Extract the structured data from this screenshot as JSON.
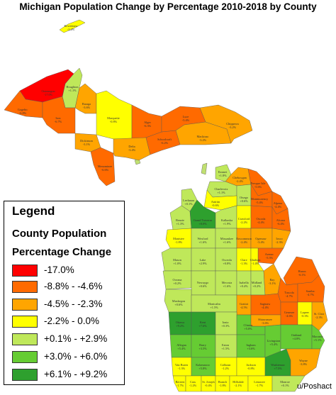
{
  "title": "Michigan Population Change by Percentage 2010-2018 by County",
  "credit": "u/Poshact",
  "legend": {
    "heading": "Legend",
    "subtitle_line1": "County Population",
    "subtitle_line2": "Percentage Change",
    "items": [
      {
        "label": "-17.0%",
        "color": "#ff0000"
      },
      {
        "label": "-8.8% - -4.6%",
        "color": "#ff6a00"
      },
      {
        "label": "-4.5% - -2.3%",
        "color": "#ffa500"
      },
      {
        "label": "-2.2% - 0.0%",
        "color": "#ffff00"
      },
      {
        "label": "+0.1% - +2.9%",
        "color": "#bfe85a"
      },
      {
        "label": "+3.0% - +6.0%",
        "color": "#66cc33"
      },
      {
        "label": "+6.1% - +9.2%",
        "color": "#2ea02e"
      }
    ]
  },
  "counties": [
    {
      "name": "Keweenaw",
      "change": "-2.2%",
      "cls": 3
    },
    {
      "name": "Houghton",
      "change": "+1.1%",
      "cls": 4
    },
    {
      "name": "Ontonagon",
      "change": "-17.0%",
      "cls": 0
    },
    {
      "name": "Gogebic",
      "change": "-6.8%",
      "cls": 1
    },
    {
      "name": "Iron",
      "change": "-6.7%",
      "cls": 1
    },
    {
      "name": "Baraga",
      "change": "-3.6%",
      "cls": 2
    },
    {
      "name": "Marquette",
      "change": "-0.8%",
      "cls": 3
    },
    {
      "name": "Dickinson",
      "change": "-3.1%",
      "cls": 2
    },
    {
      "name": "Menominee",
      "change": "-6.6%",
      "cls": 1
    },
    {
      "name": "Alger",
      "change": "-6.3%",
      "cls": 1
    },
    {
      "name": "Delta",
      "change": "-3.4%",
      "cls": 2
    },
    {
      "name": "Schoolcraft",
      "change": "-6.2%",
      "cls": 1
    },
    {
      "name": "Luce",
      "change": "-5.4%",
      "cls": 1
    },
    {
      "name": "Mackinac",
      "change": "-3.2%",
      "cls": 2
    },
    {
      "name": "Chippewa",
      "change": "-3.2%",
      "cls": 2
    },
    {
      "name": "Emmet",
      "change": "+1.8%",
      "cls": 4
    },
    {
      "name": "Cheboygan",
      "change": "-2.4%",
      "cls": 2
    },
    {
      "name": "Presque Isle",
      "change": "-5.6%",
      "cls": 1
    },
    {
      "name": "Charlevoix",
      "change": "+1.1%",
      "cls": 4
    },
    {
      "name": "Otsego",
      "change": "+0.6%",
      "cls": 4
    },
    {
      "name": "Montmorency",
      "change": "-5.4%",
      "cls": 1
    },
    {
      "name": "Alpena",
      "change": "-4.4%",
      "cls": 1
    },
    {
      "name": "Antrim",
      "change": "-0.6%",
      "cls": 3
    },
    {
      "name": "Leelanau",
      "change": "+0.1%",
      "cls": 4
    },
    {
      "name": "Benzie",
      "change": "+1.3%",
      "cls": 4
    },
    {
      "name": "Grand Traverse",
      "change": "+8.0%",
      "cls": 6
    },
    {
      "name": "Kalkaska",
      "change": "+1.9%",
      "cls": 4
    },
    {
      "name": "Crawford",
      "change": "-2.2%",
      "cls": 3
    },
    {
      "name": "Oscoda",
      "change": "-4.4%",
      "cls": 1
    },
    {
      "name": "Alcona",
      "change": "-6.4%",
      "cls": 1
    },
    {
      "name": "Manistee",
      "change": "-1.8%",
      "cls": 3
    },
    {
      "name": "Wexford",
      "change": "+1.6%",
      "cls": 4
    },
    {
      "name": "Missaukee",
      "change": "+1.6%",
      "cls": 4
    },
    {
      "name": "Roscommon",
      "change": "-2.4%",
      "cls": 2
    },
    {
      "name": "Ogemaw",
      "change": "-3.4%",
      "cls": 2
    },
    {
      "name": "Iosco",
      "change": "-2.3%",
      "cls": 2
    },
    {
      "name": "Arenac",
      "change": "-5.3%",
      "cls": 1
    },
    {
      "name": "Mason",
      "change": "+1.0%",
      "cls": 4
    },
    {
      "name": "Lake",
      "change": "+2.9%",
      "cls": 4
    },
    {
      "name": "Osceola",
      "change": "+0.8%",
      "cls": 4
    },
    {
      "name": "Clare",
      "change": "-1.3%",
      "cls": 3
    },
    {
      "name": "Gladwin",
      "change": "-1.4%",
      "cls": 3
    },
    {
      "name": "Oceana",
      "change": "+0.2%",
      "cls": 4
    },
    {
      "name": "Newaygo",
      "change": "+0.6%",
      "cls": 4
    },
    {
      "name": "Mecosta",
      "change": "+1.6%",
      "cls": 4
    },
    {
      "name": "Isabella",
      "change": "+0.4%",
      "cls": 4
    },
    {
      "name": "Midland",
      "change": "+0.2%",
      "cls": 4
    },
    {
      "name": "Bay",
      "change": "-3.1%",
      "cls": 2
    },
    {
      "name": "Huron",
      "change": "-6.1%",
      "cls": 1
    },
    {
      "name": "Tuscola",
      "change": "-4.7%",
      "cls": 1
    },
    {
      "name": "Sanilac",
      "change": "-4.7%",
      "cls": 1
    },
    {
      "name": "Muskegon",
      "change": "+0.6%",
      "cls": 4
    },
    {
      "name": "Montcalm",
      "change": "+1.5%",
      "cls": 4
    },
    {
      "name": "Gratiot",
      "change": "-4.5%",
      "cls": 2
    },
    {
      "name": "Saginaw",
      "change": "-4.4%",
      "cls": 1
    },
    {
      "name": "Ottawa",
      "change": "+9.2%",
      "cls": 6
    },
    {
      "name": "Kent",
      "change": "+7.6%",
      "cls": 6
    },
    {
      "name": "Ionia",
      "change": "+0.3%",
      "cls": 4
    },
    {
      "name": "Clinton",
      "change": "+5.0%",
      "cls": 5
    },
    {
      "name": "Shiawassee",
      "change": "-3.6%",
      "cls": 2
    },
    {
      "name": "Genesee",
      "change": "-4.6%",
      "cls": 1
    },
    {
      "name": "Lapeer",
      "change": "-0.3%",
      "cls": 3
    },
    {
      "name": "St. Clair",
      "change": "-2.3%",
      "cls": 2
    },
    {
      "name": "Allegan",
      "change": "+5.4%",
      "cls": 5
    },
    {
      "name": "Barry",
      "change": "+3.5%",
      "cls": 5
    },
    {
      "name": "Eaton",
      "change": "+1.5%",
      "cls": 4
    },
    {
      "name": "Ingham",
      "change": "+3.6%",
      "cls": 5
    },
    {
      "name": "Livingston",
      "change": "+5.4%",
      "cls": 5
    },
    {
      "name": "Oakland",
      "change": "+4.8%",
      "cls": 5
    },
    {
      "name": "Macomb",
      "change": "+5.1%",
      "cls": 5
    },
    {
      "name": "Van Buren",
      "change": "-1.3%",
      "cls": 3
    },
    {
      "name": "Kalamazoo",
      "change": "+5.8%",
      "cls": 5
    },
    {
      "name": "Calhoun",
      "change": "-1.2%",
      "cls": 3
    },
    {
      "name": "Jackson",
      "change": "-0.8%",
      "cls": 3
    },
    {
      "name": "Washtenaw",
      "change": "+7.5%",
      "cls": 6
    },
    {
      "name": "Wayne",
      "change": "-3.8%",
      "cls": 2
    },
    {
      "name": "Berrien",
      "change": "-1.7%",
      "cls": 3
    },
    {
      "name": "Cass",
      "change": "-1.2%",
      "cls": 3
    },
    {
      "name": "St. Joseph",
      "change": "-0.4%",
      "cls": 3
    },
    {
      "name": "Branch",
      "change": "-1.8%",
      "cls": 3
    },
    {
      "name": "Hillsdale",
      "change": "-2.1%",
      "cls": 3
    },
    {
      "name": "Lenawee",
      "change": "-1.7%",
      "cls": 3
    },
    {
      "name": "Monroe",
      "change": "+0.1%",
      "cls": 4
    }
  ]
}
